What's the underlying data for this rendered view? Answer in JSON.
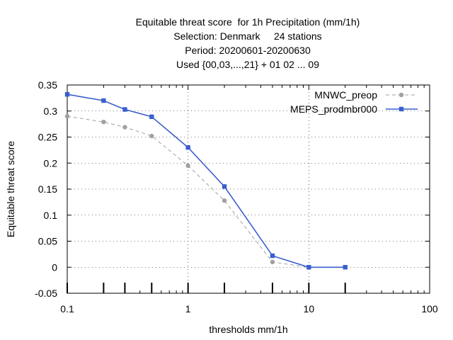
{
  "chart_data": {
    "type": "line",
    "title_lines": [
      "Equitable threat score  for 1h Precipitation (mm/1h)",
      "Selection: Denmark     24 stations",
      "Period: 20200601-20200630",
      "Used {00,03,...,21} + 01 02 ... 09"
    ],
    "xlabel": "thresholds mm/1h",
    "ylabel": "Equitable threat score",
    "x_scale": "log",
    "xlim": [
      0.1,
      100
    ],
    "ylim": [
      -0.05,
      0.35
    ],
    "x_ticks": [
      0.1,
      1,
      10,
      100
    ],
    "x_tick_labels": [
      "0.1",
      "1",
      "10",
      "100"
    ],
    "y_ticks": [
      -0.05,
      0,
      0.05,
      0.1,
      0.15,
      0.2,
      0.25,
      0.3,
      0.35
    ],
    "y_tick_labels": [
      "-0.05",
      "0",
      "0.05",
      "0.1",
      "0.15",
      "0.2",
      "0.25",
      "0.3",
      "0.35"
    ],
    "grid": true,
    "legend_position": "top-right",
    "threshold_marks": [
      0.1,
      0.2,
      0.3,
      0.5,
      1,
      2,
      5,
      10,
      20
    ],
    "series": [
      {
        "name": "MNWC_preop",
        "color": "#a0a0a0",
        "style": "dashed",
        "marker": "circle",
        "x": [
          0.1,
          0.2,
          0.3,
          0.5,
          1,
          2,
          5,
          10,
          20
        ],
        "y": [
          0.29,
          0.279,
          0.269,
          0.252,
          0.195,
          0.128,
          0.01,
          0.0,
          0.0
        ]
      },
      {
        "name": "MEPS_prodmbr000",
        "color": "#3a5fcd",
        "style": "solid",
        "marker": "square",
        "x": [
          0.1,
          0.2,
          0.3,
          0.5,
          1,
          2,
          5,
          10,
          20
        ],
        "y": [
          0.332,
          0.32,
          0.303,
          0.289,
          0.23,
          0.155,
          0.022,
          0.0,
          0.0
        ]
      }
    ]
  }
}
